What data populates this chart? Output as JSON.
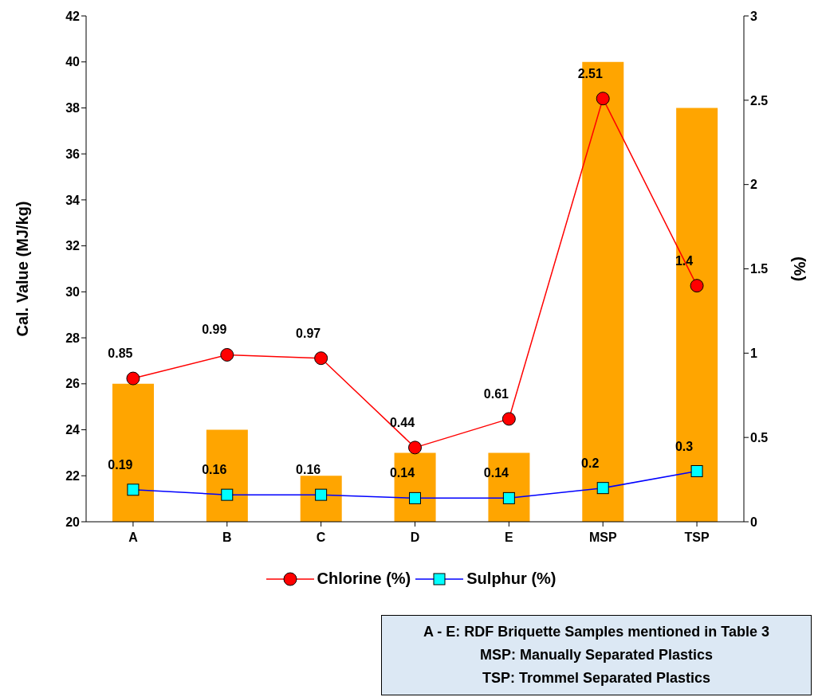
{
  "chart_data": {
    "type": "bar",
    "ylabel": "Cal. Value (MJ/kg)",
    "y2label": "(%)",
    "categories": [
      "A",
      "B",
      "C",
      "D",
      "E",
      "MSP",
      "TSP"
    ],
    "series": [
      {
        "color": "#ffa500",
        "values": [
          26,
          24,
          22,
          23,
          23,
          40,
          38
        ]
      },
      {
        "type": "line",
        "name": "Chlorine (%)",
        "axis": "y2",
        "color": "#ff0000",
        "marker": "circle",
        "values": [
          0.85,
          0.99,
          0.97,
          0.44,
          0.61,
          2.51,
          1.4
        ],
        "value_labels": [
          "0.85",
          "0.99",
          "0.97",
          "0.44",
          "0.61",
          "2.51",
          "1.4"
        ]
      },
      {
        "type": "line",
        "name": "Sulphur (%)",
        "axis": "y2",
        "color": "#0000ff",
        "colors": [
          "#00ffff",
          "#00ffff",
          "#00ffff",
          "#00ffff",
          "#00ffff",
          "#00ffff",
          "#00ffff"
        ],
        "marker": "square",
        "values": [
          0.19,
          0.16,
          0.16,
          0.14,
          0.14,
          0.2,
          0.3
        ],
        "value_labels": [
          "0.19",
          "0.16",
          "0.16",
          "0.14",
          "0.14",
          "0.2",
          "0.3"
        ]
      }
    ],
    "ylim": [
      20,
      42
    ],
    "yticks": [
      20,
      22,
      24,
      26,
      28,
      30,
      32,
      34,
      36,
      38,
      40,
      42
    ],
    "y2lim": [
      0,
      3
    ],
    "y2ticks": [
      0,
      0.5,
      1,
      1.5,
      2,
      2.5,
      3
    ],
    "grid": false,
    "legend": "bottom",
    "annotations": [
      "A - E: RDF Briquette Samples mentioned in Table 3",
      "MSP: Manually Separated Plastics",
      "TSP: Trommel Separated Plastics"
    ]
  }
}
